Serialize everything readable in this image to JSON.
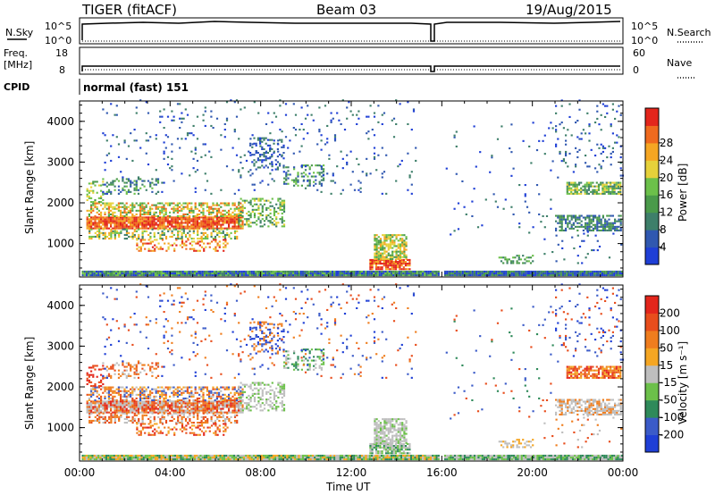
{
  "header": {
    "title": "TIGER (fitACF)",
    "beam": "Beam 03",
    "date": "19/Aug/2015"
  },
  "top_panels": {
    "nsky_label": "N.Sky",
    "nsearch_label": "N.Search",
    "noise_ticks": [
      "10^5",
      "10^0"
    ],
    "freq_label_1": "Freq.",
    "freq_label_2": "[MHz]",
    "freq_ticks": [
      "18",
      "8"
    ],
    "nave_label": "Nave",
    "nave_ticks": [
      "60",
      "0"
    ],
    "cpid_label": "CPID",
    "cpid_value": "normal (fast) 151"
  },
  "chart_data": [
    {
      "type": "heatmap",
      "name": "power",
      "ylabel": "Slant Range [km]",
      "xlabel": "Time UT",
      "x_ticks": [
        "00:00",
        "04:00",
        "08:00",
        "12:00",
        "16:00",
        "20:00",
        "00:00"
      ],
      "y_ticks": [
        1000,
        2000,
        3000,
        4000
      ],
      "ylim": [
        180,
        4500
      ],
      "xlim_hours": [
        0,
        24
      ],
      "colorbar": {
        "label": "Power [dB]",
        "ticks": [
          "4",
          "8",
          "12",
          "16",
          "20",
          "24",
          "28"
        ],
        "colors": [
          "#1f3fd6",
          "#3058b0",
          "#3e7f6a",
          "#4a9a4a",
          "#6cc04a",
          "#e6d13a",
          "#f5a623",
          "#ef6a1e",
          "#e3261c"
        ]
      }
    },
    {
      "type": "heatmap",
      "name": "velocity",
      "ylabel": "Slant Range [km]",
      "xlabel": "Time UT",
      "x_ticks": [
        "00:00",
        "04:00",
        "08:00",
        "12:00",
        "16:00",
        "20:00",
        "00:00"
      ],
      "y_ticks": [
        1000,
        2000,
        3000,
        4000
      ],
      "ylim": [
        180,
        4500
      ],
      "xlim_hours": [
        0,
        24
      ],
      "colorbar": {
        "label": "Velocity [m s⁻¹]",
        "ticks": [
          "200",
          "100",
          "50",
          "15",
          "-15",
          "-50",
          "-100",
          "-200"
        ],
        "colors": [
          "#1f3fd6",
          "#3b5bc8",
          "#2f8a5a",
          "#6cc04a",
          "#bebebe",
          "#f5a623",
          "#ef7d1e",
          "#e84d1c",
          "#e3261c"
        ]
      }
    }
  ]
}
